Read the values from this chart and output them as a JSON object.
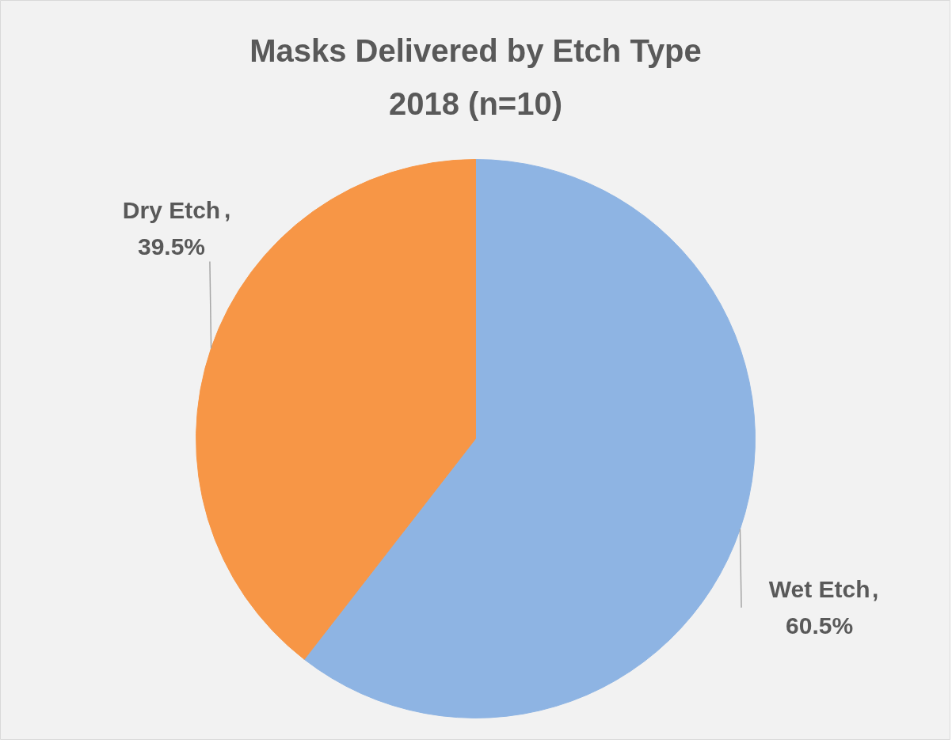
{
  "chart_data": {
    "type": "pie",
    "title": "Masks Delivered by Etch Type",
    "subtitle": "2018 (n=10)",
    "categories": [
      "Wet Etch",
      "Dry Etch"
    ],
    "values": [
      60.5,
      39.5
    ],
    "colors": [
      "#8eb4e3",
      "#f79646"
    ],
    "value_labels": [
      ",\n60.5%",
      ",\n39.5%"
    ],
    "legend": false
  }
}
